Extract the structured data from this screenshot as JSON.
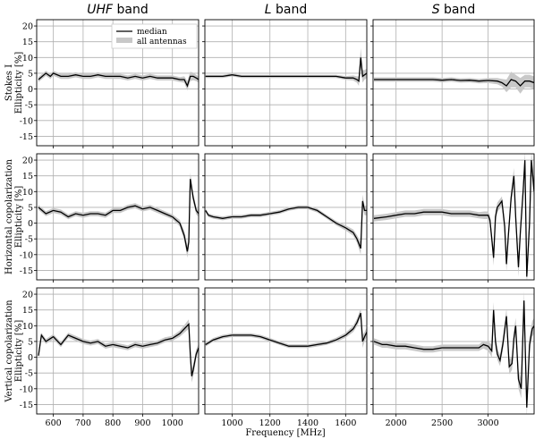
{
  "chart_data": {
    "type": "line",
    "xlabel": "Frequency [MHz]",
    "legend": {
      "placement": "top-right",
      "entries": [
        {
          "label": "median",
          "color": "#000000",
          "kind": "line"
        },
        {
          "label": "all antennas",
          "color": "#c8c8c8",
          "kind": "band"
        }
      ]
    },
    "grid": true,
    "columns": [
      {
        "band_prefix": "UHF",
        "band_suffix": " band",
        "xlim": [
          544,
          1088
        ],
        "xticks": [
          600,
          700,
          800,
          900,
          1000
        ]
      },
      {
        "band_prefix": "L",
        "band_suffix": " band",
        "xlim": [
          856,
          1712
        ],
        "xticks": [
          1000,
          1200,
          1400,
          1600
        ]
      },
      {
        "band_prefix": "S",
        "band_suffix": " band",
        "xlim": [
          1750,
          3500
        ],
        "xticks": [
          2000,
          2500,
          3000
        ]
      }
    ],
    "rows": [
      {
        "ylabel_line1": "Stokes I",
        "ylabel_line2": "Ellipticity [%]",
        "ylim": [
          -18,
          22
        ],
        "yticks": [
          -15,
          -10,
          -5,
          0,
          5,
          10,
          15,
          20
        ]
      },
      {
        "ylabel_line1": "Horizontal copolarization",
        "ylabel_line2": "Ellipticity [%]",
        "ylim": [
          -18,
          22
        ],
        "yticks": [
          -15,
          -10,
          -5,
          0,
          5,
          10,
          15,
          20
        ]
      },
      {
        "ylabel_line1": "Vertical copolarization",
        "ylabel_line2": "Ellipticity [%]",
        "ylim": [
          -18,
          22
        ],
        "yticks": [
          -15,
          -10,
          -5,
          0,
          5,
          10,
          15,
          20
        ]
      }
    ],
    "panels": [
      {
        "row": 0,
        "col": 0,
        "x": [
          550,
          575,
          590,
          600,
          625,
          650,
          675,
          700,
          725,
          750,
          775,
          800,
          825,
          850,
          875,
          900,
          925,
          950,
          975,
          1000,
          1025,
          1040,
          1050,
          1060,
          1070,
          1080,
          1088
        ],
        "y": [
          3,
          5,
          4,
          5,
          4,
          4,
          4.5,
          4,
          4,
          4.5,
          4,
          4,
          4,
          3.5,
          4,
          3.5,
          4,
          3.5,
          3.5,
          3.5,
          3,
          3,
          1,
          4,
          4,
          3.5,
          3
        ],
        "band": [
          0.8,
          0.8,
          0.8,
          0.8,
          0.8,
          0.8,
          0.8,
          0.8,
          0.8,
          0.8,
          0.8,
          0.8,
          0.8,
          0.8,
          0.8,
          0.8,
          0.8,
          0.8,
          0.8,
          0.8,
          0.8,
          1,
          1.5,
          1.5,
          1.2,
          1,
          1
        ]
      },
      {
        "row": 0,
        "col": 1,
        "x": [
          860,
          900,
          950,
          1000,
          1050,
          1100,
          1150,
          1200,
          1250,
          1300,
          1350,
          1400,
          1450,
          1500,
          1550,
          1600,
          1640,
          1660,
          1670,
          1680,
          1690,
          1700,
          1712
        ],
        "y": [
          4,
          4,
          4,
          4.5,
          4,
          4,
          4,
          4,
          4,
          4,
          4,
          4,
          4,
          4,
          4,
          3.5,
          3.5,
          3,
          2.5,
          10,
          4,
          4.5,
          5
        ],
        "band": [
          0.5,
          0.5,
          0.5,
          0.5,
          0.5,
          0.5,
          0.5,
          0.5,
          0.5,
          0.5,
          0.5,
          0.5,
          0.5,
          0.5,
          0.5,
          0.6,
          0.8,
          1,
          1.5,
          3,
          2,
          1.5,
          1.5
        ]
      },
      {
        "row": 0,
        "col": 2,
        "x": [
          1760,
          1900,
          2000,
          2100,
          2200,
          2300,
          2400,
          2500,
          2600,
          2700,
          2800,
          2900,
          3000,
          3100,
          3150,
          3200,
          3250,
          3300,
          3350,
          3400,
          3450,
          3500
        ],
        "y": [
          3,
          3,
          3,
          3,
          3,
          3,
          3,
          2.8,
          3,
          2.7,
          2.8,
          2.5,
          2.7,
          2.5,
          2,
          1,
          3,
          2.5,
          1,
          2.5,
          2.5,
          2
        ],
        "band": [
          0.7,
          0.7,
          0.7,
          0.7,
          0.7,
          0.7,
          0.7,
          0.7,
          0.7,
          0.7,
          0.7,
          0.7,
          0.8,
          1,
          1.2,
          2,
          2.5,
          2,
          2.5,
          2,
          2,
          2
        ]
      },
      {
        "row": 1,
        "col": 0,
        "x": [
          550,
          575,
          600,
          625,
          650,
          675,
          700,
          725,
          750,
          775,
          800,
          825,
          850,
          875,
          900,
          925,
          950,
          975,
          1000,
          1025,
          1040,
          1050,
          1055,
          1060,
          1065,
          1070,
          1080,
          1088
        ],
        "y": [
          5,
          3,
          4,
          3.5,
          2,
          3,
          2.5,
          3,
          3,
          2.5,
          4,
          4,
          5,
          5.5,
          4.5,
          5,
          4,
          3,
          2,
          0,
          -4,
          -9,
          -6,
          14,
          11,
          8,
          4,
          3
        ],
        "band": [
          0.8,
          0.8,
          0.8,
          0.8,
          0.8,
          0.8,
          0.8,
          0.8,
          0.8,
          0.8,
          0.8,
          0.8,
          0.8,
          0.8,
          0.8,
          0.8,
          0.8,
          0.8,
          0.8,
          1,
          1.5,
          2,
          2,
          2,
          2,
          1.5,
          1.2,
          1
        ]
      },
      {
        "row": 1,
        "col": 1,
        "x": [
          860,
          875,
          900,
          950,
          1000,
          1050,
          1100,
          1150,
          1200,
          1250,
          1300,
          1350,
          1400,
          1450,
          1500,
          1550,
          1600,
          1640,
          1660,
          1680,
          1690,
          1700,
          1712
        ],
        "y": [
          4,
          2.5,
          2,
          1.5,
          2,
          2,
          2.5,
          2.5,
          3,
          3.5,
          4.5,
          5,
          5,
          4,
          2,
          0,
          -1.5,
          -3,
          -5,
          -8,
          7,
          4,
          4
        ],
        "band": [
          0.6,
          0.6,
          0.6,
          0.6,
          0.6,
          0.6,
          0.6,
          0.6,
          0.6,
          0.6,
          0.6,
          0.6,
          0.6,
          0.6,
          0.6,
          0.7,
          0.8,
          1,
          1.2,
          2,
          2,
          1.5,
          1.5
        ]
      },
      {
        "row": 1,
        "col": 2,
        "x": [
          1760,
          1900,
          2000,
          2100,
          2200,
          2300,
          2400,
          2500,
          2600,
          2700,
          2800,
          2900,
          2960,
          3000,
          3020,
          3040,
          3060,
          3080,
          3100,
          3150,
          3180,
          3200,
          3220,
          3250,
          3280,
          3300,
          3330,
          3350,
          3380,
          3400,
          3420,
          3450,
          3470,
          3500
        ],
        "y": [
          1.5,
          2,
          2.5,
          3,
          3,
          3.5,
          3.5,
          3.5,
          3,
          3,
          3,
          2.5,
          2.5,
          2.5,
          1,
          -5,
          -11,
          2,
          5,
          7,
          -1,
          -13,
          -4,
          8,
          15,
          2,
          -14,
          -3,
          10,
          20,
          -17,
          0,
          20,
          10
        ],
        "band": [
          1,
          1,
          1,
          1,
          1,
          1,
          1,
          1,
          1,
          1,
          1,
          1,
          1.2,
          1.2,
          1.5,
          2,
          2.5,
          2,
          1.5,
          1.5,
          2,
          2.5,
          2,
          2,
          2.5,
          2,
          3,
          2.5,
          2.5,
          3,
          3,
          2.5,
          3,
          3
        ]
      },
      {
        "row": 2,
        "col": 0,
        "x": [
          550,
          560,
          575,
          600,
          625,
          650,
          675,
          700,
          725,
          750,
          775,
          800,
          825,
          850,
          875,
          900,
          925,
          950,
          975,
          1000,
          1025,
          1040,
          1055,
          1060,
          1065,
          1070,
          1080,
          1088
        ],
        "y": [
          0.5,
          7,
          5,
          6.5,
          4,
          7,
          6,
          5,
          4.5,
          5,
          3.5,
          4,
          3.5,
          3,
          4,
          3.5,
          4,
          4.5,
          5.5,
          6,
          7.5,
          9,
          10.5,
          1,
          -6,
          -4,
          1,
          3
        ],
        "band": [
          0.8,
          0.8,
          0.8,
          0.8,
          0.8,
          0.8,
          0.8,
          0.8,
          0.8,
          0.8,
          0.8,
          0.8,
          0.8,
          0.8,
          0.8,
          0.8,
          0.8,
          0.8,
          0.8,
          0.8,
          1,
          1.2,
          1.5,
          2,
          2,
          2,
          1.5,
          1.2
        ]
      },
      {
        "row": 2,
        "col": 1,
        "x": [
          860,
          900,
          950,
          1000,
          1050,
          1100,
          1150,
          1200,
          1250,
          1300,
          1350,
          1400,
          1450,
          1500,
          1550,
          1600,
          1640,
          1660,
          1680,
          1690,
          1700,
          1712
        ],
        "y": [
          4,
          5.5,
          6.5,
          7,
          7,
          7,
          6.5,
          5.5,
          4.5,
          3.5,
          3.5,
          3.5,
          4,
          4.5,
          5.5,
          7,
          9,
          11,
          14,
          5,
          6.5,
          8
        ],
        "band": [
          0.6,
          0.6,
          0.6,
          0.6,
          0.6,
          0.6,
          0.6,
          0.6,
          0.6,
          0.6,
          0.6,
          0.6,
          0.6,
          0.6,
          0.7,
          0.8,
          1,
          1.2,
          1.5,
          2,
          1.5,
          1.5
        ]
      },
      {
        "row": 2,
        "col": 2,
        "x": [
          1760,
          1850,
          1900,
          2000,
          2100,
          2200,
          2300,
          2400,
          2500,
          2600,
          2700,
          2800,
          2900,
          2950,
          3000,
          3040,
          3060,
          3080,
          3100,
          3130,
          3160,
          3200,
          3230,
          3260,
          3280,
          3300,
          3330,
          3360,
          3390,
          3420,
          3450,
          3480,
          3500
        ],
        "y": [
          5,
          4,
          4,
          3.5,
          3.5,
          3,
          2.5,
          2.5,
          3,
          3,
          3,
          3,
          3,
          4,
          3.5,
          2,
          15,
          5,
          1,
          -1,
          4,
          13,
          -3,
          -2,
          6,
          10,
          -7,
          -10,
          18,
          -16,
          4,
          9,
          10
        ],
        "band": [
          1,
          1,
          1,
          1,
          1,
          1,
          1,
          1,
          1,
          1,
          1,
          1,
          1,
          1.2,
          1.5,
          2,
          2.5,
          2,
          1.8,
          1.8,
          2,
          2.5,
          2.5,
          2,
          2.5,
          2.5,
          3,
          3,
          3,
          3,
          2.5,
          2.5,
          2.5
        ]
      }
    ]
  }
}
